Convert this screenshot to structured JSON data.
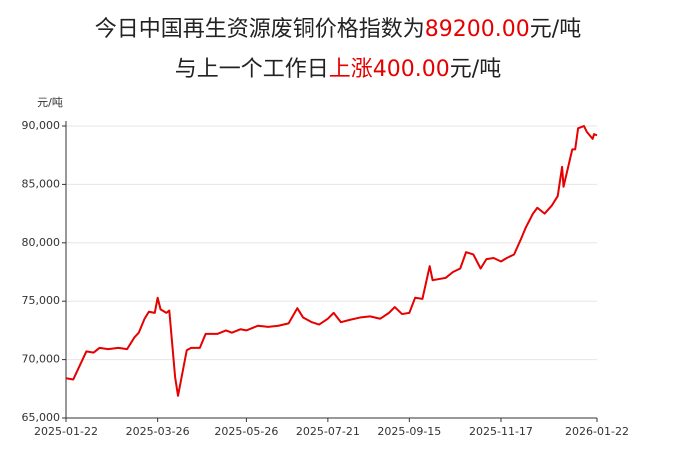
{
  "chart_data": {
    "type": "line",
    "title_lines": [
      [
        {
          "text": "今日中国再生资源废铜价格指数为",
          "color": "#222222"
        },
        {
          "text": "89200.00",
          "color": "#e60000"
        },
        {
          "text": "元/吨",
          "color": "#222222"
        }
      ],
      [
        {
          "text": "与上一个工作日",
          "color": "#222222"
        },
        {
          "text": "上涨400.00",
          "color": "#e60000"
        },
        {
          "text": "元/吨",
          "color": "#222222"
        }
      ]
    ],
    "y_label": "元/吨",
    "color": "#e60000",
    "grid": true,
    "x": [
      "2025-01-22",
      "2025-01-27",
      "2025-02-05",
      "2025-02-10",
      "2025-02-14",
      "2025-02-20",
      "2025-02-27",
      "2025-03-05",
      "2025-03-10",
      "2025-03-13",
      "2025-03-17",
      "2025-03-20",
      "2025-03-24",
      "2025-03-26",
      "2025-03-28",
      "2025-04-01",
      "2025-04-03",
      "2025-04-07",
      "2025-04-09",
      "2025-04-11",
      "2025-04-15",
      "2025-04-18",
      "2025-04-24",
      "2025-04-28",
      "2025-05-06",
      "2025-05-12",
      "2025-05-16",
      "2025-05-22",
      "2025-05-26",
      "2025-06-03",
      "2025-06-10",
      "2025-06-17",
      "2025-06-24",
      "2025-06-30",
      "2025-07-04",
      "2025-07-10",
      "2025-07-15",
      "2025-07-21",
      "2025-07-25",
      "2025-07-30",
      "2025-08-05",
      "2025-08-12",
      "2025-08-19",
      "2025-08-26",
      "2025-09-01",
      "2025-09-05",
      "2025-09-10",
      "2025-09-15",
      "2025-09-19",
      "2025-09-24",
      "2025-09-29",
      "2025-10-01",
      "2025-10-10",
      "2025-10-15",
      "2025-10-20",
      "2025-10-24",
      "2025-10-29",
      "2025-11-03",
      "2025-11-07",
      "2025-11-12",
      "2025-11-17",
      "2025-11-21",
      "2025-11-26",
      "2025-12-01",
      "2025-12-04",
      "2025-12-09",
      "2025-12-12",
      "2025-12-17",
      "2025-12-22",
      "2025-12-26",
      "2025-12-29",
      "2025-12-30",
      "2026-01-05",
      "2026-01-07",
      "2026-01-09",
      "2026-01-13",
      "2026-01-15",
      "2026-01-19",
      "2026-01-20",
      "2026-01-22"
    ],
    "values": [
      68400,
      68300,
      70700,
      70600,
      71000,
      70900,
      71000,
      70900,
      71900,
      72300,
      73500,
      74100,
      74000,
      75300,
      74300,
      74000,
      74200,
      68500,
      66900,
      68200,
      70800,
      71000,
      71000,
      72200,
      72200,
      72500,
      72300,
      72600,
      72500,
      72900,
      72800,
      72900,
      73100,
      74400,
      73600,
      73200,
      73000,
      73500,
      74000,
      73200,
      73400,
      73600,
      73700,
      73500,
      74000,
      74500,
      73900,
      74000,
      75300,
      75200,
      78000,
      76800,
      77000,
      77500,
      77800,
      79200,
      79000,
      77800,
      78600,
      78700,
      78400,
      78700,
      79000,
      80400,
      81300,
      82500,
      83000,
      82500,
      83200,
      84000,
      86500,
      84800,
      88000,
      88000,
      89800,
      90000,
      89500,
      88900,
      89300,
      89200
    ],
    "xlim": [
      "2025-01-22",
      "2026-01-22"
    ],
    "xticks": [
      "2025-01-22",
      "2025-03-26",
      "2025-05-26",
      "2025-07-21",
      "2025-09-15",
      "2025-11-17",
      "2026-01-22"
    ],
    "ylim": [
      65000,
      90000
    ],
    "yticks": [
      {
        "value": 65000,
        "label": "65,000"
      },
      {
        "value": 70000,
        "label": "70,000"
      },
      {
        "value": 75000,
        "label": "75,000"
      },
      {
        "value": 80000,
        "label": "80,000"
      },
      {
        "value": 85000,
        "label": "85,000"
      },
      {
        "value": 90000,
        "label": "90,000"
      }
    ]
  }
}
